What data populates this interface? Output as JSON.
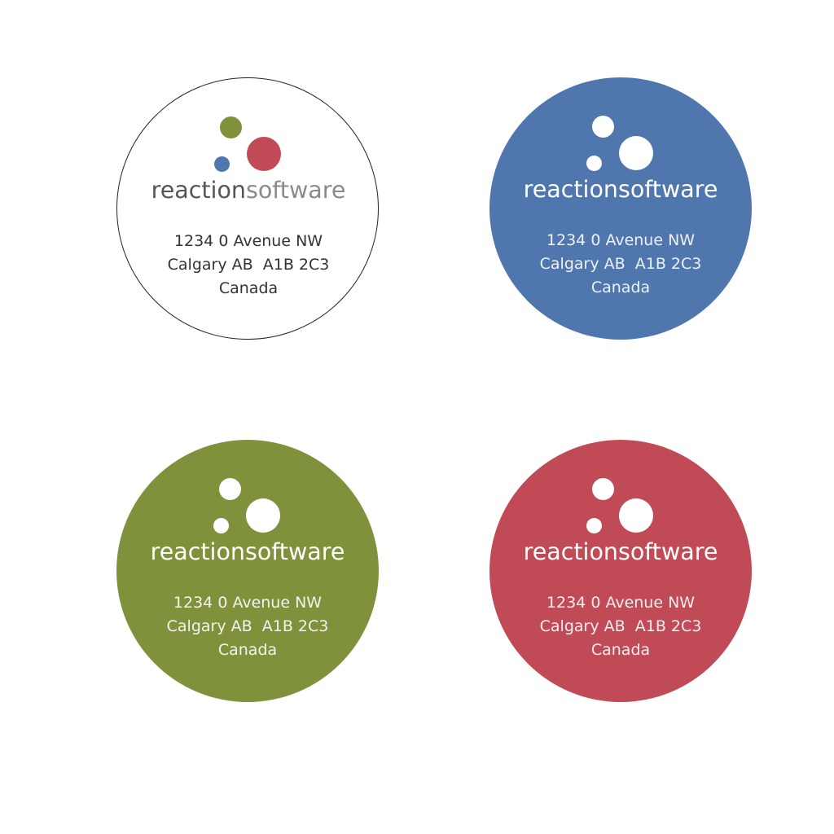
{
  "brand": {
    "name_part1": "reaction",
    "name_part2": "software"
  },
  "address": {
    "line1": "1234 0 Avenue NW",
    "line2": "Calgary AB  A1B 2C3",
    "line3": "Canada"
  },
  "colors": {
    "blue": "#4f76ad",
    "green": "#80913c",
    "red": "#c04b56",
    "white": "#ffffff",
    "dark_text": "#555555",
    "outline": "#222222"
  },
  "labels": [
    {
      "variant": "white-outlined",
      "background": "#ffffff",
      "text_color": "#555555",
      "dot_colors": [
        "#80913c",
        "#c04b56",
        "#4f76ad"
      ]
    },
    {
      "variant": "blue",
      "background": "#4f76ad",
      "text_color": "#ffffff",
      "dot_colors": [
        "#ffffff",
        "#ffffff",
        "#ffffff"
      ]
    },
    {
      "variant": "green",
      "background": "#80913c",
      "text_color": "#ffffff",
      "dot_colors": [
        "#ffffff",
        "#ffffff",
        "#ffffff"
      ]
    },
    {
      "variant": "red",
      "background": "#c04b56",
      "text_color": "#ffffff",
      "dot_colors": [
        "#ffffff",
        "#ffffff",
        "#ffffff"
      ]
    }
  ]
}
